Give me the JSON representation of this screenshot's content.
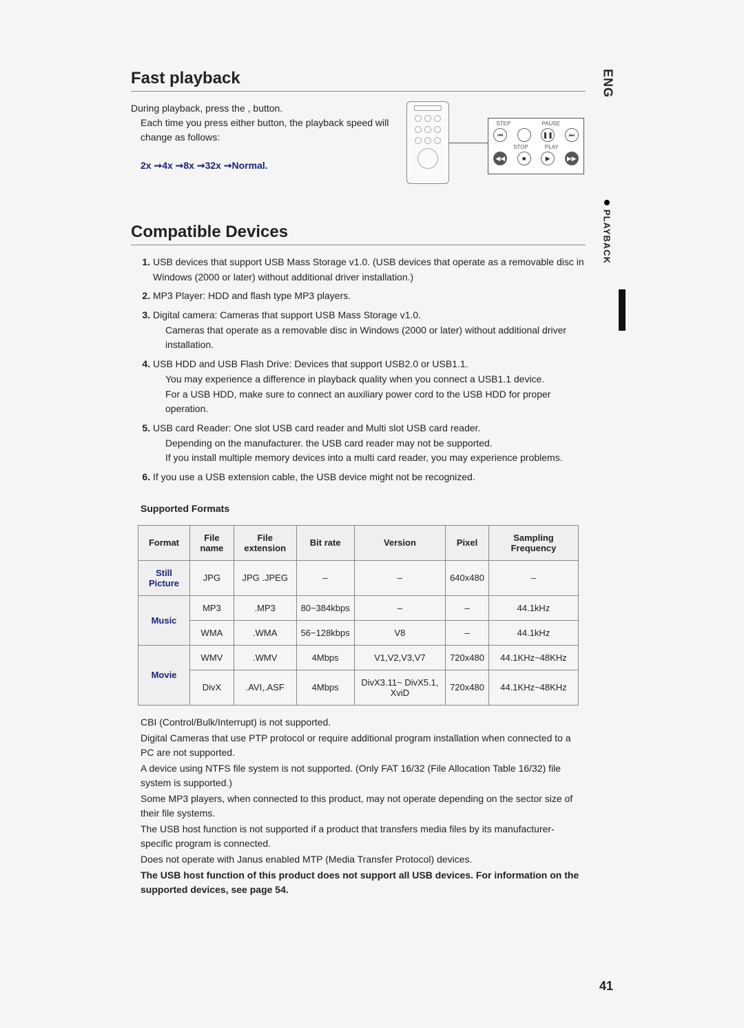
{
  "sidebar": {
    "lang": "ENG",
    "section": "PLAYBACK"
  },
  "page_number": "41",
  "fast_playback": {
    "title": "Fast playback",
    "line1": "During playback, press the     ,      button.",
    "line2": "Each time you press either button, the playback speed will change as follows:",
    "sequence": "2x ➞4x ➞8x ➞32x ➞Normal.",
    "remote_labels": {
      "step": "STEP",
      "pause": "PAUSE",
      "stop": "STOP",
      "play": "PLAY"
    }
  },
  "compat": {
    "title": "Compatible Devices",
    "items": [
      {
        "head": "USB devices that support USB Mass Storage v1.0. (USB devices that operate as a removable disc in Windows (2000 or later) without additional driver installation.)"
      },
      {
        "head": "MP3 Player: HDD and flash type MP3 players."
      },
      {
        "head": "Digital camera: Cameras that support USB Mass Storage v1.0.",
        "sub": "Cameras that operate as a removable disc in Windows (2000 or later) without additional driver installation."
      },
      {
        "head": "USB HDD and USB Flash Drive: Devices that support USB2.0 or USB1.1.",
        "sub": "You may experience a difference in playback quality when you connect a USB1.1 device.\nFor a USB HDD, make sure to connect an auxiliary power cord to the USB HDD for proper operation."
      },
      {
        "head": "USB card Reader: One slot USB card reader and Multi slot USB card reader.",
        "sub": "Depending on the manufacturer. the USB card reader may not be supported.\nIf you install multiple memory devices into a multi card reader, you may experience problems."
      },
      {
        "head": "If you use a USB extension cable, the USB device might not be recognized."
      }
    ]
  },
  "supported_formats": {
    "title": "Supported Formats",
    "columns": [
      "Format",
      "File name",
      "File extension",
      "Bit rate",
      "Version",
      "Pixel",
      "Sampling Frequency"
    ],
    "groups": [
      {
        "label": "Still Picture",
        "rows": [
          [
            "JPG",
            "JPG .JPEG",
            "–",
            "–",
            "640x480",
            "–"
          ]
        ]
      },
      {
        "label": "Music",
        "rows": [
          [
            "MP3",
            ".MP3",
            "80~384kbps",
            "–",
            "–",
            "44.1kHz"
          ],
          [
            "WMA",
            ".WMA",
            "56~128kbps",
            "V8",
            "–",
            "44.1kHz"
          ]
        ]
      },
      {
        "label": "Movie",
        "rows": [
          [
            "WMV",
            ".WMV",
            "4Mbps",
            "V1,V2,V3,V7",
            "720x480",
            "44.1KHz~48KHz"
          ],
          [
            "DivX",
            ".AVI,.ASF",
            "4Mbps",
            "DivX3.11~ DivX5.1, XviD",
            "720x480",
            "44.1KHz~48KHz"
          ]
        ]
      }
    ]
  },
  "notes": [
    "CBI (Control/Bulk/Interrupt) is not supported.",
    "Digital Cameras that use PTP protocol or require additional program installation when connected to a PC are not supported.",
    "A device using NTFS file system is not supported. (Only FAT 16/32 (File Allocation Table 16/32) file system is supported.)",
    "Some MP3 players, when connected to this product, may not operate depending on the sector size of their file systems.",
    "The USB host function is not supported if a product that transfers media files by its manufacturer-specific program is connected.",
    "Does not operate with Janus enabled MTP (Media Transfer Protocol) devices."
  ],
  "notes_bold": "The USB host function of this product does not support all USB devices. For information on the supported devices, see page 54."
}
